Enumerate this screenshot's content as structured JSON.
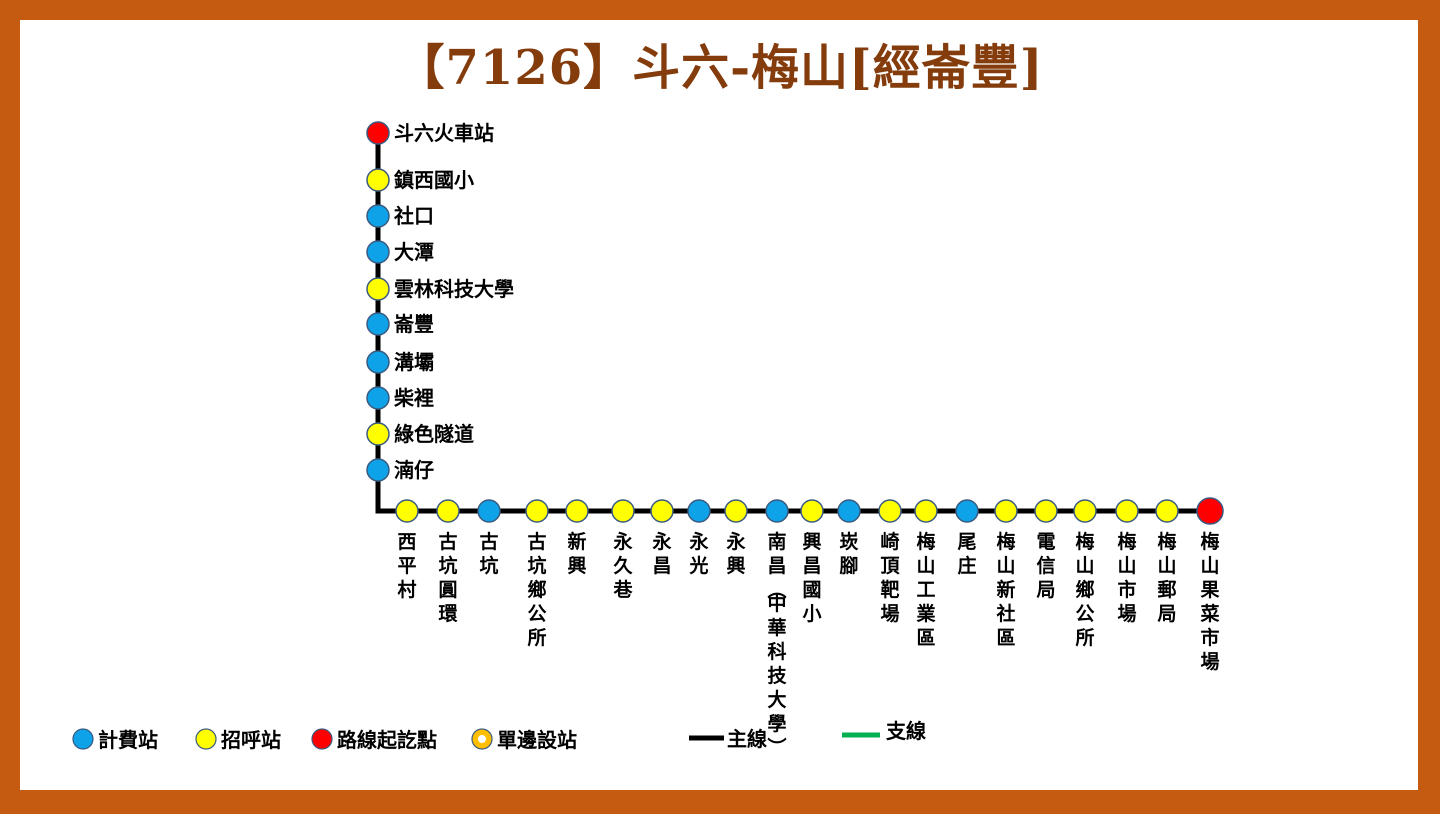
{
  "title": "【7126】斗六-梅山[經崙豐]",
  "colors": {
    "fare": "#0ea3e8",
    "flag": "#ffff00",
    "terminal": "#ff0000",
    "one_side": "#ffbf00",
    "main_line": "#000000",
    "branch_line": "#00b050",
    "border": "#c55a11",
    "title": "#843c0c"
  },
  "vertical_stops": [
    {
      "name": "斗六火車站",
      "type": "terminal"
    },
    {
      "name": "鎮西國小",
      "type": "flag"
    },
    {
      "name": "社口",
      "type": "fare"
    },
    {
      "name": "大潭",
      "type": "fare"
    },
    {
      "name": "雲林科技大學",
      "type": "flag"
    },
    {
      "name": "崙豐",
      "type": "fare"
    },
    {
      "name": "溝壩",
      "type": "fare"
    },
    {
      "name": "柴裡",
      "type": "fare"
    },
    {
      "name": "綠色隧道",
      "type": "flag"
    },
    {
      "name": "湳仔",
      "type": "fare"
    }
  ],
  "horizontal_stops": [
    {
      "name": "西平村",
      "type": "flag"
    },
    {
      "name": "古坑圓環",
      "type": "flag"
    },
    {
      "name": "古坑",
      "type": "fare"
    },
    {
      "name": "古坑鄉公所",
      "type": "flag"
    },
    {
      "name": "新興",
      "type": "flag"
    },
    {
      "name": "永久巷",
      "type": "flag"
    },
    {
      "name": "永昌",
      "type": "flag"
    },
    {
      "name": "永光",
      "type": "fare"
    },
    {
      "name": "永興",
      "type": "flag"
    },
    {
      "name": "南昌(中華科技大學)",
      "type": "fare"
    },
    {
      "name": "興昌國小",
      "type": "flag"
    },
    {
      "name": "崁腳",
      "type": "fare"
    },
    {
      "name": "崎頂靶場",
      "type": "flag"
    },
    {
      "name": "梅山工業區",
      "type": "flag"
    },
    {
      "name": "尾庄",
      "type": "fare"
    },
    {
      "name": "梅山新社區",
      "type": "flag"
    },
    {
      "name": "電信局",
      "type": "flag"
    },
    {
      "name": "梅山鄉公所",
      "type": "flag"
    },
    {
      "name": "梅山市場",
      "type": "flag"
    },
    {
      "name": "梅山郵局",
      "type": "flag"
    },
    {
      "name": "梅山果菜市場",
      "type": "terminal"
    }
  ],
  "legend": {
    "fare": "計費站",
    "flag": "招呼站",
    "terminal": "路線起訖點",
    "one_side": "單邊設站",
    "main_line": "主線",
    "branch_line": "支線"
  }
}
